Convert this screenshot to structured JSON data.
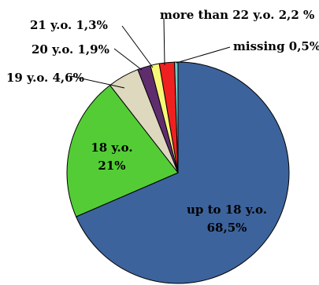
{
  "chart_data": {
    "type": "pie",
    "title": "",
    "start_angle_deg": 0,
    "direction": "clockwise",
    "slices": [
      {
        "label": "up to 18 y.o.",
        "value": 68.5,
        "value_label": "68,5%",
        "color": "#3c639c"
      },
      {
        "label": "18 y.o.",
        "value": 21.0,
        "value_label": "21%",
        "color": "#54cc36"
      },
      {
        "label": "19 y.o.",
        "value": 4.6,
        "value_label": "4,6%",
        "color": "#ddd8be"
      },
      {
        "label": "20 y.o.",
        "value": 1.9,
        "value_label": "1,9%",
        "color": "#5f2d6e"
      },
      {
        "label": "21 y.o.",
        "value": 1.3,
        "value_label": "1,3%",
        "color": "#f8f878"
      },
      {
        "label": "more than 22 y.o.",
        "value": 2.2,
        "value_label": "2,2 %",
        "color": "#f02020"
      },
      {
        "label": "missing",
        "value": 0.5,
        "value_label": "0,5%",
        "color": "#6fd0c8"
      }
    ]
  }
}
